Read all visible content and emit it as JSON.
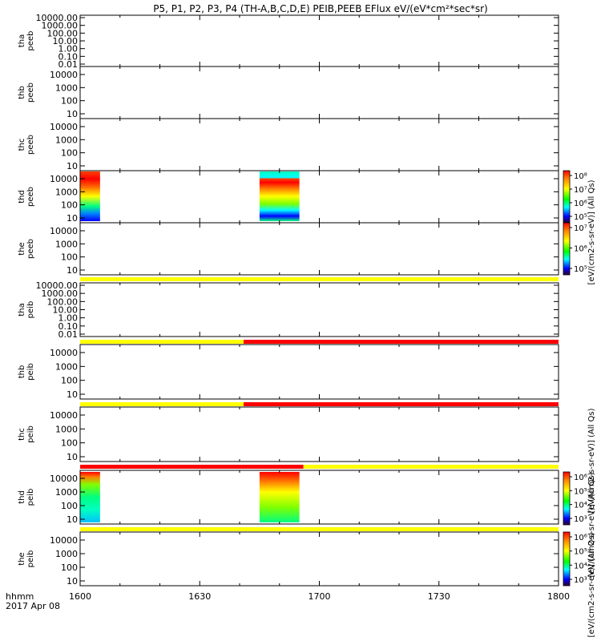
{
  "chart_data": {
    "type": "heatmap",
    "title": "P5, P1, P2, P3, P4 (TH-A,B,C,D,E) PEIB,PEEB EFlux eV/(eV*cm²*sec*sr)",
    "x_ticks": [
      "1600",
      "1630",
      "1700",
      "1730",
      "1800"
    ],
    "x_range": [
      "16:00",
      "18:00"
    ],
    "xlabel": "hhmm",
    "date_label": "2017 Apr 08",
    "panels": [
      {
        "id": "tha-peeb",
        "label": [
          "tha",
          "peeb"
        ],
        "scale": "log",
        "yticks": [
          "10000.00",
          "1000.00",
          "100.00",
          "10.00",
          "1.00",
          "0.10",
          "0.01"
        ],
        "data_blocks": []
      },
      {
        "id": "thb-peeb",
        "label": [
          "thb",
          "peeb"
        ],
        "scale": "log",
        "yticks": [
          "10000",
          "1000",
          "100",
          "10"
        ],
        "data_blocks": []
      },
      {
        "id": "thc-peeb",
        "label": [
          "thc",
          "peeb"
        ],
        "scale": "log",
        "yticks": [
          "10000",
          "1000",
          "100",
          "10"
        ],
        "data_blocks": []
      },
      {
        "id": "thd-peeb",
        "label": [
          "thd",
          "peeb"
        ],
        "scale": "log",
        "yticks": [
          "10000",
          "1000",
          "100",
          "10"
        ],
        "data_blocks": [
          {
            "start": "16:00",
            "end": "16:05"
          },
          {
            "start": "16:45",
            "end": "16:55"
          }
        ]
      },
      {
        "id": "the-peeb",
        "label": [
          "the",
          "peeb"
        ],
        "scale": "log",
        "yticks": [
          "10000",
          "1000",
          "100",
          "10"
        ],
        "data_blocks": []
      },
      {
        "id": "tha-peib",
        "label": [
          "tha",
          "peib"
        ],
        "scale": "log",
        "yticks": [
          "10000.00",
          "1000.00",
          "100.00",
          "10.00",
          "1.00",
          "0.10",
          "0.01"
        ],
        "data_blocks": []
      },
      {
        "id": "thb-peib",
        "label": [
          "thb",
          "peib"
        ],
        "scale": "log",
        "yticks": [
          "10000",
          "1000",
          "100",
          "10"
        ],
        "data_blocks": []
      },
      {
        "id": "thc-peib",
        "label": [
          "thc",
          "peib"
        ],
        "scale": "log",
        "yticks": [
          "10000",
          "1000",
          "100",
          "10"
        ],
        "data_blocks": []
      },
      {
        "id": "thd-peib",
        "label": [
          "thd",
          "peib"
        ],
        "scale": "log",
        "yticks": [
          "10000",
          "1000",
          "100",
          "10"
        ],
        "data_blocks": [
          {
            "start": "16:00",
            "end": "16:05"
          },
          {
            "start": "16:45",
            "end": "16:55"
          }
        ]
      },
      {
        "id": "the-peib",
        "label": [
          "the",
          "peib"
        ],
        "scale": "log",
        "yticks": [
          "10000",
          "1000",
          "100",
          "10"
        ],
        "data_blocks": []
      }
    ],
    "flag_bars": [
      {
        "after_panel": "the-peeb",
        "segments": [
          {
            "start": "16:00",
            "end": "18:00",
            "color": "#ffff00"
          }
        ]
      },
      {
        "after_panel": "tha-peib",
        "segments": [
          {
            "start": "16:00",
            "end": "16:41",
            "color": "#ffff00"
          },
          {
            "start": "16:41",
            "end": "18:00",
            "color": "#ff0000"
          }
        ]
      },
      {
        "after_panel": "thb-peib",
        "segments": [
          {
            "start": "16:00",
            "end": "16:41",
            "color": "#ffff00"
          },
          {
            "start": "16:41",
            "end": "18:00",
            "color": "#ff0000"
          }
        ]
      },
      {
        "after_panel": "thc-peib",
        "segments": [
          {
            "start": "16:00",
            "end": "16:56",
            "color": "#ff0000"
          },
          {
            "start": "16:56",
            "end": "18:00",
            "color": "#ffff00"
          }
        ]
      },
      {
        "after_panel": "thd-peib",
        "segments": [
          {
            "start": "16:00",
            "end": "18:00",
            "color": "#ffff00"
          }
        ]
      }
    ],
    "colorbars": [
      {
        "id": "colorbar-thd-peeb",
        "scale": "log",
        "ticks": [
          "10⁸",
          "10⁷",
          "10⁶",
          "10⁵"
        ]
      },
      {
        "id": "colorbar-the-peeb",
        "scale": "log",
        "ticks": [
          "10⁷",
          "10⁶",
          "10⁵"
        ]
      },
      {
        "id": "colorbar-thd-peib",
        "scale": "log",
        "ticks": [
          "10⁶",
          "10⁵",
          "10⁴",
          "10³"
        ]
      },
      {
        "id": "colorbar-the-peib",
        "scale": "log",
        "ticks": [
          "10⁶",
          "10⁵",
          "10⁴",
          "10³"
        ]
      }
    ],
    "colorbar_labels": [
      "[eV/(cm2-s-sr-eV)] (All Qs)",
      "[eV/(cm2-s-sr-eV)] (All Qs)",
      "[eV/(cm2-s-sr-eV)] (All Qs)",
      "[eV/(cm2-s-sr-eV)] (All Qs)"
    ],
    "colormap": [
      "#ffffff",
      "#000080",
      "#0000ff",
      "#0080ff",
      "#00ffff",
      "#00ff80",
      "#80ff00",
      "#ffff00",
      "#ff8000",
      "#ff0000"
    ]
  }
}
